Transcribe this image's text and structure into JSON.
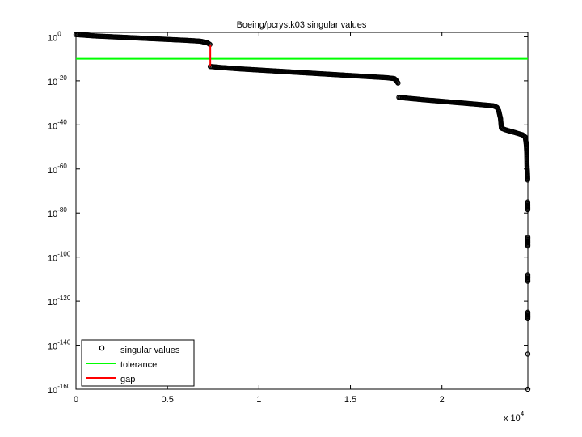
{
  "chart_data": {
    "type": "scatter",
    "title": "Boeing/pcrystk03 singular values",
    "xlabel": "",
    "ylabel": "",
    "x_scale_label": "x 10",
    "x_scale_exponent": "4",
    "xlim": [
      0,
      24696
    ],
    "ylim_log10": [
      -160,
      2
    ],
    "y_scale": "log",
    "x_ticks": [
      {
        "value": 0,
        "label": "0"
      },
      {
        "value": 5000,
        "label": "0.5"
      },
      {
        "value": 10000,
        "label": "1"
      },
      {
        "value": 15000,
        "label": "1.5"
      },
      {
        "value": 20000,
        "label": "2"
      }
    ],
    "y_ticks": [
      {
        "exp": 0,
        "base": "10",
        "sup": "0"
      },
      {
        "exp": -20,
        "base": "10",
        "sup": "-20"
      },
      {
        "exp": -40,
        "base": "10",
        "sup": "-40"
      },
      {
        "exp": -60,
        "base": "10",
        "sup": "-60"
      },
      {
        "exp": -80,
        "base": "10",
        "sup": "-80"
      },
      {
        "exp": -100,
        "base": "10",
        "sup": "-100"
      },
      {
        "exp": -120,
        "base": "10",
        "sup": "-120"
      },
      {
        "exp": -140,
        "base": "10",
        "sup": "-140"
      },
      {
        "exp": -160,
        "base": "10",
        "sup": "-160"
      }
    ],
    "grid": false,
    "legend_position": "bottom-left",
    "colors": {
      "singular": "#000000",
      "tolerance": "#00ff00",
      "gap": "#ff0000"
    },
    "series": [
      {
        "name": "singular values",
        "kind": "markers",
        "log10_points": [
          [
            0,
            1.0
          ],
          [
            1000,
            0.4
          ],
          [
            2000,
            0.0
          ],
          [
            3000,
            -0.4
          ],
          [
            4000,
            -0.8
          ],
          [
            5000,
            -1.2
          ],
          [
            6000,
            -1.6
          ],
          [
            6800,
            -2.0
          ],
          [
            7200,
            -2.8
          ],
          [
            7320,
            -3.5
          ],
          [
            7340,
            -13.5
          ],
          [
            8000,
            -14.0
          ],
          [
            9000,
            -14.6
          ],
          [
            10000,
            -15.1
          ],
          [
            11000,
            -15.6
          ],
          [
            12000,
            -16.1
          ],
          [
            13000,
            -16.6
          ],
          [
            14000,
            -17.1
          ],
          [
            15000,
            -17.6
          ],
          [
            16000,
            -18.1
          ],
          [
            17000,
            -18.6
          ],
          [
            17400,
            -19.0
          ],
          [
            17500,
            -19.8
          ],
          [
            17600,
            -21.0
          ],
          [
            17650,
            -27.5
          ],
          [
            18000,
            -27.8
          ],
          [
            19000,
            -28.6
          ],
          [
            20000,
            -29.3
          ],
          [
            21000,
            -30.0
          ],
          [
            22000,
            -30.7
          ],
          [
            22800,
            -31.3
          ],
          [
            23000,
            -32.0
          ],
          [
            23100,
            -33.5
          ],
          [
            23200,
            -37.0
          ],
          [
            23250,
            -41.5
          ],
          [
            23500,
            -42.3
          ],
          [
            24000,
            -43.5
          ],
          [
            24400,
            -44.5
          ],
          [
            24550,
            -45.5
          ],
          [
            24600,
            -48.0
          ],
          [
            24620,
            -50.0
          ],
          [
            24640,
            -53.0
          ],
          [
            24650,
            -58.5
          ],
          [
            24660,
            -60.0
          ],
          [
            24670,
            -61.0
          ],
          [
            24680,
            -63.0
          ],
          [
            24685,
            -65.0
          ],
          [
            24690,
            -75.0
          ],
          [
            24692,
            -77.0
          ],
          [
            24694,
            -78.5
          ],
          [
            24695,
            -91.0
          ],
          [
            24695,
            -95.0
          ],
          [
            24695,
            -108.0
          ],
          [
            24695,
            -111.0
          ],
          [
            24696,
            -125.0
          ],
          [
            24696,
            -128.0
          ],
          [
            24696,
            -144.0
          ],
          [
            24696,
            -160.0
          ]
        ]
      },
      {
        "name": "tolerance",
        "kind": "hline",
        "log10_y": -10
      },
      {
        "name": "gap",
        "kind": "vline",
        "x": 7340,
        "log10_y": [
          -13.5,
          -3.5
        ]
      }
    ]
  }
}
